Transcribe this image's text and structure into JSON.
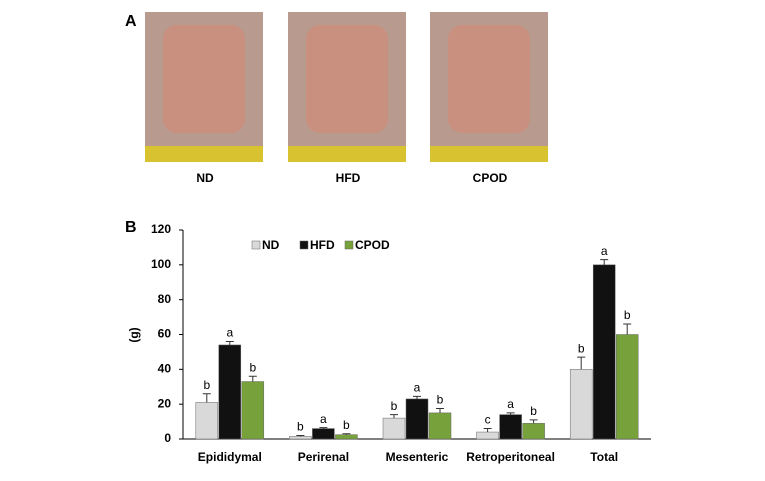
{
  "panel_a": {
    "label": "A",
    "photos": [
      "ND",
      "HFD",
      "CPOD"
    ]
  },
  "chart_data": {
    "type": "bar",
    "panel_label": "B",
    "y_label": "(g)",
    "categories": [
      "Epididymal",
      "Perirenal",
      "Mesenteric",
      "Retroperitoneal",
      "Total"
    ],
    "series": [
      {
        "name": "ND",
        "color": "#d9d9d9",
        "values": [
          21,
          1.5,
          12,
          4,
          40
        ],
        "errors": [
          5,
          0.5,
          2,
          2,
          7
        ],
        "letters": [
          "b",
          "b",
          "b",
          "c",
          "b"
        ]
      },
      {
        "name": "HFD",
        "color": "#111111",
        "values": [
          54,
          6,
          23,
          14,
          100
        ],
        "errors": [
          2,
          0.5,
          1.5,
          1,
          3
        ],
        "letters": [
          "a",
          "a",
          "a",
          "a",
          "a"
        ]
      },
      {
        "name": "CPOD",
        "color": "#77a13a",
        "values": [
          33,
          2.5,
          15,
          9,
          60
        ],
        "errors": [
          3,
          0.5,
          2.5,
          2,
          6
        ],
        "letters": [
          "b",
          "b",
          "b",
          "b",
          "b"
        ]
      }
    ],
    "ylim": [
      0,
      120
    ],
    "yticks": [
      0,
      20,
      40,
      60,
      80,
      100,
      120
    ],
    "grid": false
  }
}
